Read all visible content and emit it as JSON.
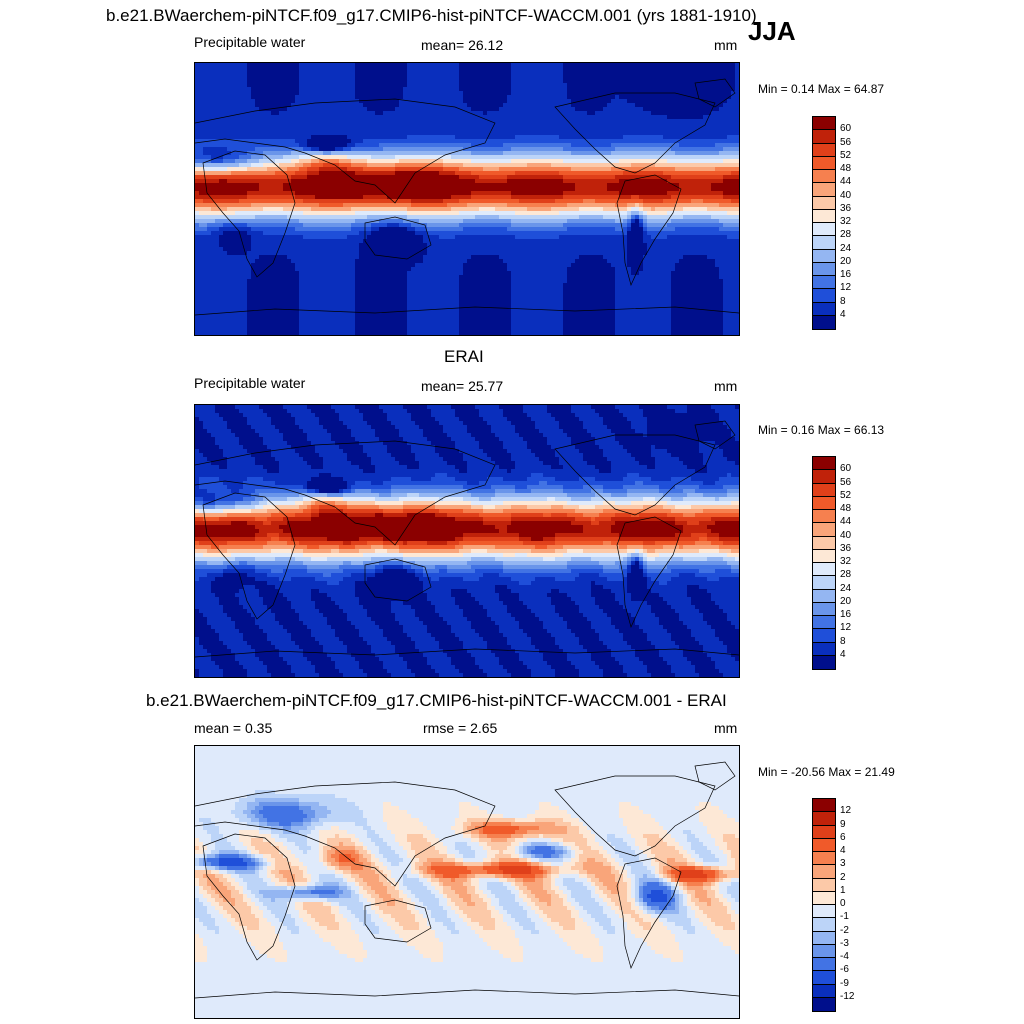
{
  "figure": {
    "title": "b.e21.BWaerchem-piNTCF.f09_g17.CMIP6-hist-piNTCF-WACCM.001 (yrs 1881-1910)",
    "season": "JJA"
  },
  "chart_data": [
    {
      "type": "heatmap",
      "title": "",
      "variable": "Precipitable water",
      "mean_text": "mean=  26.12",
      "mean": 26.12,
      "units": "mm",
      "minmax_text": "Min =   0.14 Max =  64.87",
      "min": 0.14,
      "max": 64.87,
      "colorbar_labels": [
        "60",
        "56",
        "52",
        "48",
        "44",
        "40",
        "36",
        "32",
        "28",
        "24",
        "20",
        "16",
        "12",
        "8",
        "4"
      ],
      "colors": [
        "#8b0000",
        "#c0220a",
        "#e0401a",
        "#f05a2a",
        "#f6804f",
        "#f9a57a",
        "#fcc9a8",
        "#fde8d6",
        "#dfeafb",
        "#bcd4f8",
        "#94b6f2",
        "#6a95ea",
        "#4273e4",
        "#1f4fd9",
        "#0a2fbd",
        "#000f8c"
      ],
      "pattern": "abs"
    },
    {
      "type": "heatmap",
      "title": "ERAI",
      "variable": "Precipitable water",
      "mean_text": "mean=  25.77",
      "mean": 25.77,
      "units": "mm",
      "minmax_text": "Min =   0.16 Max =  66.13",
      "min": 0.16,
      "max": 66.13,
      "colorbar_labels": [
        "60",
        "56",
        "52",
        "48",
        "44",
        "40",
        "36",
        "32",
        "28",
        "24",
        "20",
        "16",
        "12",
        "8",
        "4"
      ],
      "colors": [
        "#8b0000",
        "#c0220a",
        "#e0401a",
        "#f05a2a",
        "#f6804f",
        "#f9a57a",
        "#fcc9a8",
        "#fde8d6",
        "#dfeafb",
        "#bcd4f8",
        "#94b6f2",
        "#6a95ea",
        "#4273e4",
        "#1f4fd9",
        "#0a2fbd",
        "#000f8c"
      ],
      "pattern": "abs"
    },
    {
      "type": "heatmap",
      "title": "b.e21.BWaerchem-piNTCF.f09_g17.CMIP6-hist-piNTCF-WACCM.001 - ERAI",
      "variable": "",
      "mean_text": "mean =   0.35",
      "mean": 0.35,
      "rmse_text": "rmse =   2.65",
      "rmse": 2.65,
      "units": "mm",
      "minmax_text": "Min = -20.56 Max =  21.49",
      "min": -20.56,
      "max": 21.49,
      "colorbar_labels": [
        "12",
        "9",
        "6",
        "4",
        "3",
        "2",
        "1",
        "0",
        "-1",
        "-2",
        "-3",
        "-4",
        "-6",
        "-9",
        "-12"
      ],
      "colors": [
        "#8b0000",
        "#c0220a",
        "#e0401a",
        "#f05a2a",
        "#f6804f",
        "#f9a57a",
        "#fcc9a8",
        "#fde8d6",
        "#dfeafb",
        "#bcd4f8",
        "#94b6f2",
        "#6a95ea",
        "#4273e4",
        "#1f4fd9",
        "#0a2fbd",
        "#000f8c"
      ],
      "pattern": "diff"
    }
  ]
}
